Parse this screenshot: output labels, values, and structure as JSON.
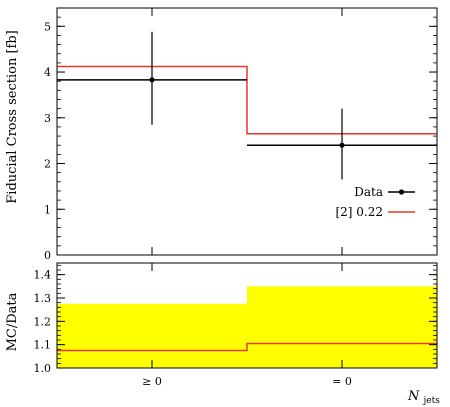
{
  "chart_data": [
    {
      "type": "line",
      "panel": "main",
      "ylabel": "Fiducial Cross section [fb]",
      "ylim": [
        0,
        5.4
      ],
      "yticks": [
        0,
        1,
        2,
        3,
        4,
        5
      ],
      "categories": [
        "≥ 0",
        "= 0"
      ],
      "series": [
        {
          "name": "Data",
          "style": "points-with-errorbars",
          "color": "#000000",
          "values": [
            3.83,
            2.4
          ],
          "err_low": [
            0.98,
            0.75
          ],
          "err_high": [
            1.05,
            0.8
          ]
        },
        {
          "name": "[2] 0.22",
          "style": "step",
          "color": "#e8382a",
          "values": [
            4.12,
            2.65
          ]
        }
      ],
      "legend_position": "middle-right"
    },
    {
      "type": "line",
      "panel": "ratio",
      "ylabel": "MC/Data",
      "xlabel": "N",
      "xlabel_sub": "jets",
      "ylim": [
        1.0,
        1.45
      ],
      "yticks": [
        1.0,
        1.1,
        1.2,
        1.3,
        1.4
      ],
      "yticklabels": [
        "1.0",
        "1.1",
        "1.2",
        "1.3",
        "1.4"
      ],
      "categories": [
        "≥ 0",
        "= 0"
      ],
      "band": {
        "color": "#ffff00",
        "upper": [
          1.275,
          1.35
        ],
        "lower": [
          1.0,
          1.0
        ]
      },
      "series": [
        {
          "name": "[2] 0.22",
          "style": "step",
          "color": "#e8382a",
          "values": [
            1.075,
            1.105
          ]
        }
      ]
    }
  ]
}
